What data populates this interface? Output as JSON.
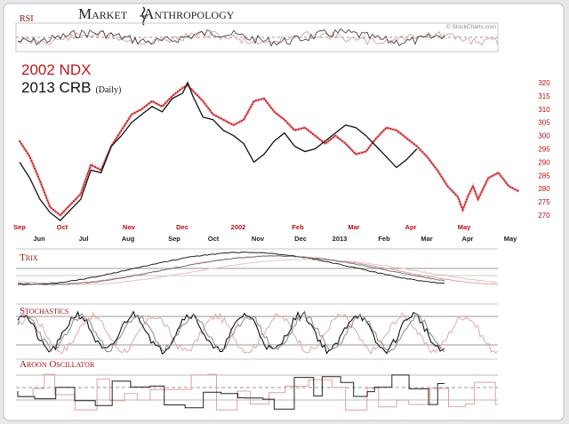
{
  "brand": {
    "name_parts": [
      "M",
      "ARKET",
      "A",
      "NTHROPOLOGY"
    ],
    "credit": "© StockCharts.com"
  },
  "title": {
    "line1": "2002 NDX",
    "line2": "2013 CRB",
    "line2_suffix": "(Daily)"
  },
  "panels": {
    "rsi": "RSI",
    "trix": "Trix",
    "stochastics": "Stochastics",
    "aroon": "Aroon Oscillator"
  },
  "colors": {
    "ndx_2002": "#c0161b",
    "crb_2013": "#111111",
    "ndx_2002_light": "#d98c8c"
  },
  "chart_data": {
    "type": "line",
    "title": "2002 NDX / 2013 CRB (Daily)",
    "y_right": {
      "ticks": [
        320,
        315,
        310,
        305,
        300,
        295,
        290,
        285,
        280,
        275,
        270
      ],
      "range": [
        267,
        323
      ]
    },
    "x_top_axis_labels": [
      "Sep",
      "Oct",
      "Nov",
      "Dec",
      "2002",
      "Feb",
      "Mar",
      "Apr",
      "May"
    ],
    "x_bottom_axis_labels": [
      "Jun",
      "Jul",
      "Aug",
      "Sep",
      "Oct",
      "Nov",
      "Dec",
      "2013",
      "Feb",
      "Mar",
      "Apr",
      "May"
    ],
    "x_range": [
      0,
      100
    ],
    "series": [
      {
        "name": "2002 NDX",
        "style": "dotted",
        "points": [
          [
            0,
            298
          ],
          [
            2,
            292
          ],
          [
            4,
            283
          ],
          [
            6,
            273
          ],
          [
            8,
            270
          ],
          [
            10,
            274
          ],
          [
            12,
            278
          ],
          [
            14,
            289
          ],
          [
            16,
            287
          ],
          [
            18,
            296
          ],
          [
            20,
            302
          ],
          [
            22,
            308
          ],
          [
            24,
            310
          ],
          [
            26,
            313
          ],
          [
            28,
            311
          ],
          [
            30,
            315
          ],
          [
            32,
            318
          ],
          [
            33,
            319
          ],
          [
            34,
            317
          ],
          [
            36,
            313
          ],
          [
            38,
            308
          ],
          [
            40,
            306
          ],
          [
            42,
            304
          ],
          [
            44,
            306
          ],
          [
            46,
            313
          ],
          [
            48,
            314
          ],
          [
            50,
            309
          ],
          [
            52,
            306
          ],
          [
            54,
            302
          ],
          [
            56,
            303
          ],
          [
            58,
            300
          ],
          [
            60,
            297
          ],
          [
            62,
            300
          ],
          [
            64,
            297
          ],
          [
            66,
            293
          ],
          [
            68,
            294
          ],
          [
            70,
            299
          ],
          [
            72,
            303
          ],
          [
            74,
            302
          ],
          [
            76,
            299
          ],
          [
            78,
            296
          ],
          [
            80,
            292
          ],
          [
            82,
            287
          ],
          [
            84,
            281
          ],
          [
            86,
            277
          ],
          [
            87,
            272
          ],
          [
            88,
            277
          ],
          [
            89,
            281
          ],
          [
            90,
            276
          ],
          [
            92,
            284
          ],
          [
            94,
            286
          ],
          [
            96,
            281
          ],
          [
            98,
            279
          ]
        ]
      },
      {
        "name": "2013 CRB",
        "style": "solid",
        "points": [
          [
            0,
            290
          ],
          [
            2,
            284
          ],
          [
            4,
            276
          ],
          [
            6,
            271
          ],
          [
            8,
            268
          ],
          [
            10,
            272
          ],
          [
            12,
            276
          ],
          [
            14,
            287
          ],
          [
            16,
            286
          ],
          [
            18,
            296
          ],
          [
            20,
            300
          ],
          [
            22,
            305
          ],
          [
            24,
            308
          ],
          [
            26,
            311
          ],
          [
            28,
            309
          ],
          [
            30,
            314
          ],
          [
            32,
            316
          ],
          [
            33,
            320
          ],
          [
            34,
            315
          ],
          [
            36,
            307
          ],
          [
            38,
            306
          ],
          [
            40,
            302
          ],
          [
            42,
            300
          ],
          [
            44,
            297
          ],
          [
            46,
            290
          ],
          [
            48,
            293
          ],
          [
            50,
            298
          ],
          [
            52,
            301
          ],
          [
            54,
            296
          ],
          [
            56,
            294
          ],
          [
            58,
            295
          ],
          [
            60,
            298
          ],
          [
            62,
            301
          ],
          [
            64,
            304
          ],
          [
            66,
            303
          ],
          [
            68,
            300
          ],
          [
            70,
            296
          ],
          [
            72,
            292
          ],
          [
            74,
            288
          ],
          [
            76,
            291
          ],
          [
            78,
            295
          ]
        ]
      }
    ]
  }
}
